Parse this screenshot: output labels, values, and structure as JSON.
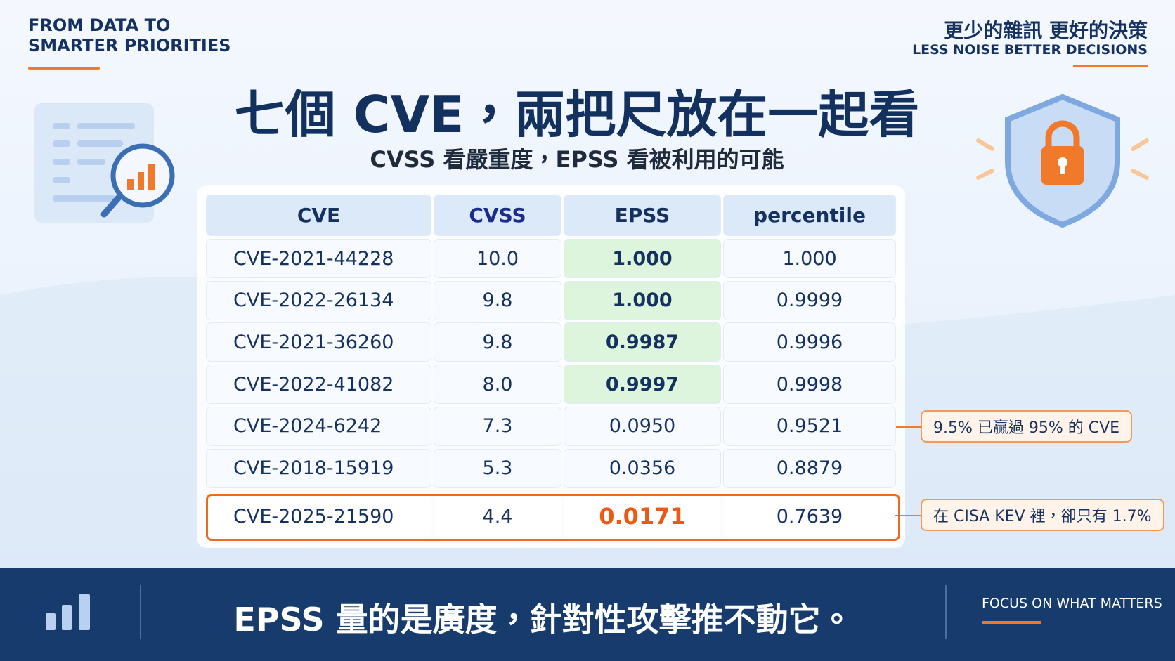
{
  "header": {
    "tagline_lines": [
      "FROM DATA TO",
      "SMARTER PRIORITIES"
    ],
    "tagline_zh": "更少的雜訊 更好的決策",
    "tagline_en": "LESS NOISE BETTER DECISIONS"
  },
  "title": "七個 CVE，兩把尺放在一起看",
  "subtitle": "CVSS 看嚴重度，EPSS 看被利用的可能",
  "table": {
    "columns": [
      "CVE",
      "CVSS",
      "EPSS",
      "percentile"
    ],
    "rows": [
      [
        "CVE-2021-44228",
        "10.0",
        "1.000",
        "1.000"
      ],
      [
        "CVE-2022-26134",
        "9.8",
        "1.000",
        "0.9999"
      ],
      [
        "CVE-2021-36260",
        "9.8",
        "0.9987",
        "0.9996"
      ],
      [
        "CVE-2022-41082",
        "8.0",
        "0.9997",
        "0.9998"
      ],
      [
        "CVE-2024-6242",
        "7.3",
        "0.0950",
        "0.9521"
      ],
      [
        "CVE-2018-15919",
        "5.3",
        "0.0356",
        "0.8879"
      ],
      [
        "CVE-2025-21590",
        "4.4",
        "0.0171",
        "0.7639"
      ]
    ]
  },
  "annotations": [
    "9.5% 已贏過 95% 的 CVE",
    "在 CISA KEV 裡，卻只有 1.7%"
  ],
  "footer": {
    "message": "EPSS 量的是廣度，針對性攻擊推不動它。",
    "tag": "FOCUS ON WHAT MATTERS"
  }
}
